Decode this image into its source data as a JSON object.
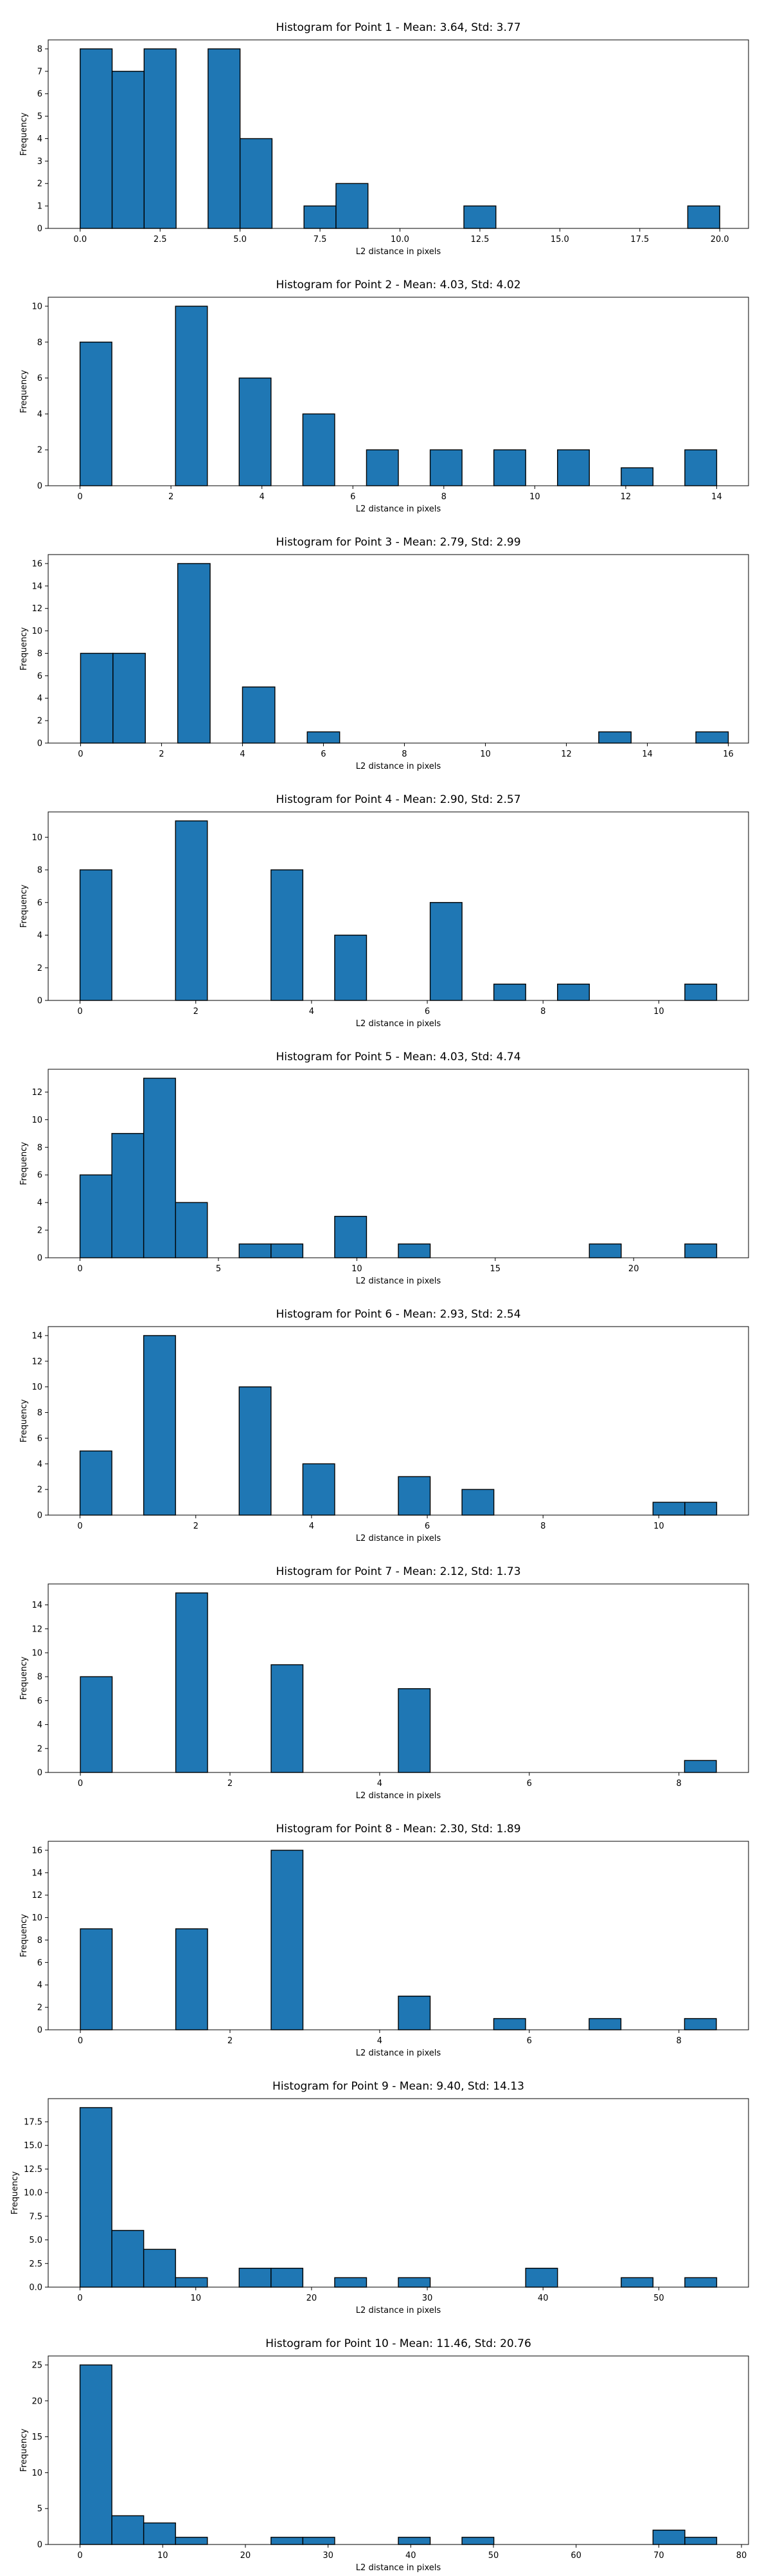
{
  "chart_data": [
    {
      "type": "bar",
      "title": "Histogram for Point 1 - Mean: 3.64, Std: 3.77",
      "xlabel": "L2 distance in pixels",
      "ylabel": "Frequency",
      "xlim": [
        -1,
        20.9
      ],
      "ylim": [
        0,
        8.4
      ],
      "xticks": [
        0.0,
        2.5,
        5.0,
        7.5,
        10.0,
        12.5,
        15.0,
        17.5,
        20.0
      ],
      "xtick_labels": [
        "0.0",
        "2.5",
        "5.0",
        "7.5",
        "10.0",
        "12.5",
        "15.0",
        "17.5",
        "20.0"
      ],
      "yticks": [
        0,
        1,
        2,
        3,
        4,
        5,
        6,
        7,
        8
      ],
      "ytick_labels": [
        "0",
        "1",
        "2",
        "3",
        "4",
        "5",
        "6",
        "7",
        "8"
      ],
      "bin_start": 0,
      "bin_width": 1,
      "counts": [
        8,
        7,
        8,
        0,
        8,
        4,
        0,
        1,
        2,
        0,
        0,
        0,
        1,
        0,
        0,
        0,
        0,
        0,
        0,
        1
      ]
    },
    {
      "type": "bar",
      "title": "Histogram for Point 2 - Mean: 4.03, Std: 4.02",
      "xlabel": "L2 distance in pixels",
      "ylabel": "Frequency",
      "xlim": [
        -0.7,
        14.7
      ],
      "ylim": [
        0,
        10.5
      ],
      "xticks": [
        0,
        2,
        4,
        6,
        8,
        10,
        12,
        14
      ],
      "xtick_labels": [
        "0",
        "2",
        "4",
        "6",
        "8",
        "10",
        "12",
        "14"
      ],
      "yticks": [
        0,
        2,
        4,
        6,
        8,
        10
      ],
      "ytick_labels": [
        "0",
        "2",
        "4",
        "6",
        "8",
        "10"
      ],
      "bin_start": 0,
      "bin_width": 0.7,
      "counts": [
        8,
        0,
        0,
        10,
        0,
        6,
        0,
        4,
        0,
        2,
        0,
        2,
        0,
        2,
        0,
        2,
        0,
        1,
        0,
        2
      ]
    },
    {
      "type": "bar",
      "title": "Histogram for Point 3 - Mean: 2.79, Std: 2.99",
      "xlabel": "L2 distance in pixels",
      "ylabel": "Frequency",
      "xlim": [
        -0.8,
        16.5
      ],
      "ylim": [
        0,
        16.8
      ],
      "xticks": [
        0,
        2,
        4,
        6,
        8,
        10,
        12,
        14,
        16
      ],
      "xtick_labels": [
        "0",
        "2",
        "4",
        "6",
        "8",
        "10",
        "12",
        "14",
        "16"
      ],
      "yticks": [
        0,
        2,
        4,
        6,
        8,
        10,
        12,
        14,
        16
      ],
      "ytick_labels": [
        "0",
        "2",
        "4",
        "6",
        "8",
        "10",
        "12",
        "14",
        "16"
      ],
      "bin_start": 0,
      "bin_width": 0.8,
      "counts": [
        8,
        8,
        0,
        16,
        0,
        5,
        0,
        1,
        0,
        0,
        0,
        0,
        0,
        0,
        0,
        0,
        1,
        0,
        0,
        1
      ]
    },
    {
      "type": "bar",
      "title": "Histogram for Point 4 - Mean: 2.90, Std: 2.57",
      "xlabel": "L2 distance in pixels",
      "ylabel": "Frequency",
      "xlim": [
        -0.55,
        11.55
      ],
      "ylim": [
        0,
        11.55
      ],
      "xticks": [
        0,
        2,
        4,
        6,
        8,
        10
      ],
      "xtick_labels": [
        "0",
        "2",
        "4",
        "6",
        "8",
        "10"
      ],
      "yticks": [
        0,
        2,
        4,
        6,
        8,
        10
      ],
      "ytick_labels": [
        "0",
        "2",
        "4",
        "6",
        "8",
        "10"
      ],
      "bin_start": 0,
      "bin_width": 0.55,
      "counts": [
        8,
        0,
        0,
        11,
        0,
        0,
        8,
        0,
        4,
        0,
        0,
        6,
        0,
        1,
        0,
        1,
        0,
        0,
        0,
        1
      ]
    },
    {
      "type": "bar",
      "title": "Histogram for Point 5 - Mean: 4.03, Std: 4.74",
      "xlabel": "L2 distance in pixels",
      "ylabel": "Frequency",
      "xlim": [
        -1.15,
        24.15
      ],
      "ylim": [
        0,
        13.65
      ],
      "xticks": [
        0,
        5,
        10,
        15,
        20
      ],
      "xtick_labels": [
        "0",
        "5",
        "10",
        "15",
        "20"
      ],
      "yticks": [
        0,
        2,
        4,
        6,
        8,
        10,
        12
      ],
      "ytick_labels": [
        "0",
        "2",
        "4",
        "6",
        "8",
        "10",
        "12"
      ],
      "bin_start": 0,
      "bin_width": 1.15,
      "counts": [
        6,
        9,
        13,
        4,
        0,
        1,
        1,
        0,
        3,
        0,
        1,
        0,
        0,
        0,
        0,
        0,
        1,
        0,
        0,
        1
      ]
    },
    {
      "type": "bar",
      "title": "Histogram for Point 6 - Mean: 2.93, Std: 2.54",
      "xlabel": "L2 distance in pixels",
      "ylabel": "Frequency",
      "xlim": [
        -0.55,
        11.55
      ],
      "ylim": [
        0,
        14.7
      ],
      "xticks": [
        0,
        2,
        4,
        6,
        8,
        10
      ],
      "xtick_labels": [
        "0",
        "2",
        "4",
        "6",
        "8",
        "10"
      ],
      "yticks": [
        0,
        2,
        4,
        6,
        8,
        10,
        12,
        14
      ],
      "ytick_labels": [
        "0",
        "2",
        "4",
        "6",
        "8",
        "10",
        "12",
        "14"
      ],
      "bin_start": 0,
      "bin_width": 0.55,
      "counts": [
        5,
        0,
        14,
        0,
        0,
        10,
        0,
        4,
        0,
        0,
        3,
        0,
        2,
        0,
        0,
        0,
        0,
        0,
        1,
        1
      ]
    },
    {
      "type": "bar",
      "title": "Histogram for Point 7 - Mean: 2.12, Std: 1.73",
      "xlabel": "L2 distance in pixels",
      "ylabel": "Frequency",
      "xlim": [
        -0.43,
        8.93
      ],
      "ylim": [
        0,
        15.75
      ],
      "xticks": [
        0,
        2,
        4,
        6,
        8
      ],
      "xtick_labels": [
        "0",
        "2",
        "4",
        "6",
        "8"
      ],
      "yticks": [
        0,
        2,
        4,
        6,
        8,
        10,
        12,
        14
      ],
      "ytick_labels": [
        "0",
        "2",
        "4",
        "6",
        "8",
        "10",
        "12",
        "14"
      ],
      "bin_start": 0,
      "bin_width": 0.425,
      "counts": [
        8,
        0,
        0,
        15,
        0,
        0,
        9,
        0,
        0,
        0,
        7,
        0,
        0,
        0,
        0,
        0,
        0,
        0,
        0,
        1
      ]
    },
    {
      "type": "bar",
      "title": "Histogram for Point 8 - Mean: 2.30, Std: 1.89",
      "xlabel": "L2 distance in pixels",
      "ylabel": "Frequency",
      "xlim": [
        -0.43,
        8.93
      ],
      "ylim": [
        0,
        16.8
      ],
      "xticks": [
        0,
        2,
        4,
        6,
        8
      ],
      "xtick_labels": [
        "0",
        "2",
        "4",
        "6",
        "8"
      ],
      "yticks": [
        0,
        2,
        4,
        6,
        8,
        10,
        12,
        14,
        16
      ],
      "ytick_labels": [
        "0",
        "2",
        "4",
        "6",
        "8",
        "10",
        "12",
        "14",
        "16"
      ],
      "bin_start": 0,
      "bin_width": 0.425,
      "counts": [
        9,
        0,
        0,
        9,
        0,
        0,
        16,
        0,
        0,
        0,
        3,
        0,
        0,
        1,
        0,
        0,
        1,
        0,
        0,
        1
      ]
    },
    {
      "type": "bar",
      "title": "Histogram for Point 9 - Mean: 9.40, Std: 14.13",
      "xlabel": "L2 distance in pixels",
      "ylabel": "Frequency",
      "xlim": [
        -2.75,
        57.75
      ],
      "ylim": [
        0,
        19.95
      ],
      "xticks": [
        0,
        10,
        20,
        30,
        40,
        50
      ],
      "xtick_labels": [
        "0",
        "10",
        "20",
        "30",
        "40",
        "50"
      ],
      "yticks": [
        0,
        2.5,
        5,
        7.5,
        10,
        12.5,
        15,
        17.5
      ],
      "ytick_labels": [
        "0.0",
        "2.5",
        "5.0",
        "7.5",
        "10.0",
        "12.5",
        "15.0",
        "17.5"
      ],
      "bin_start": 0,
      "bin_width": 2.75,
      "counts": [
        19,
        6,
        4,
        1,
        0,
        2,
        2,
        0,
        1,
        0,
        1,
        0,
        0,
        0,
        2,
        0,
        0,
        1,
        0,
        1
      ]
    },
    {
      "type": "bar",
      "title": "Histogram for Point 10 - Mean: 11.46, Std: 20.76",
      "xlabel": "L2 distance in pixels",
      "ylabel": "Frequency",
      "xlim": [
        -3.85,
        80.85
      ],
      "ylim": [
        0,
        26.25
      ],
      "xticks": [
        0,
        10,
        20,
        30,
        40,
        50,
        60,
        70,
        80
      ],
      "xtick_labels": [
        "0",
        "10",
        "20",
        "30",
        "40",
        "50",
        "60",
        "70",
        "80"
      ],
      "yticks": [
        0,
        5,
        10,
        15,
        20,
        25
      ],
      "ytick_labels": [
        "0",
        "5",
        "10",
        "15",
        "20",
        "25"
      ],
      "bin_start": 0,
      "bin_width": 3.85,
      "counts": [
        25,
        4,
        3,
        1,
        0,
        0,
        1,
        1,
        0,
        0,
        1,
        0,
        1,
        0,
        0,
        0,
        0,
        0,
        2,
        1
      ]
    }
  ],
  "style": {
    "bar_color": "#1f77b4",
    "edge_color": "#000000"
  }
}
